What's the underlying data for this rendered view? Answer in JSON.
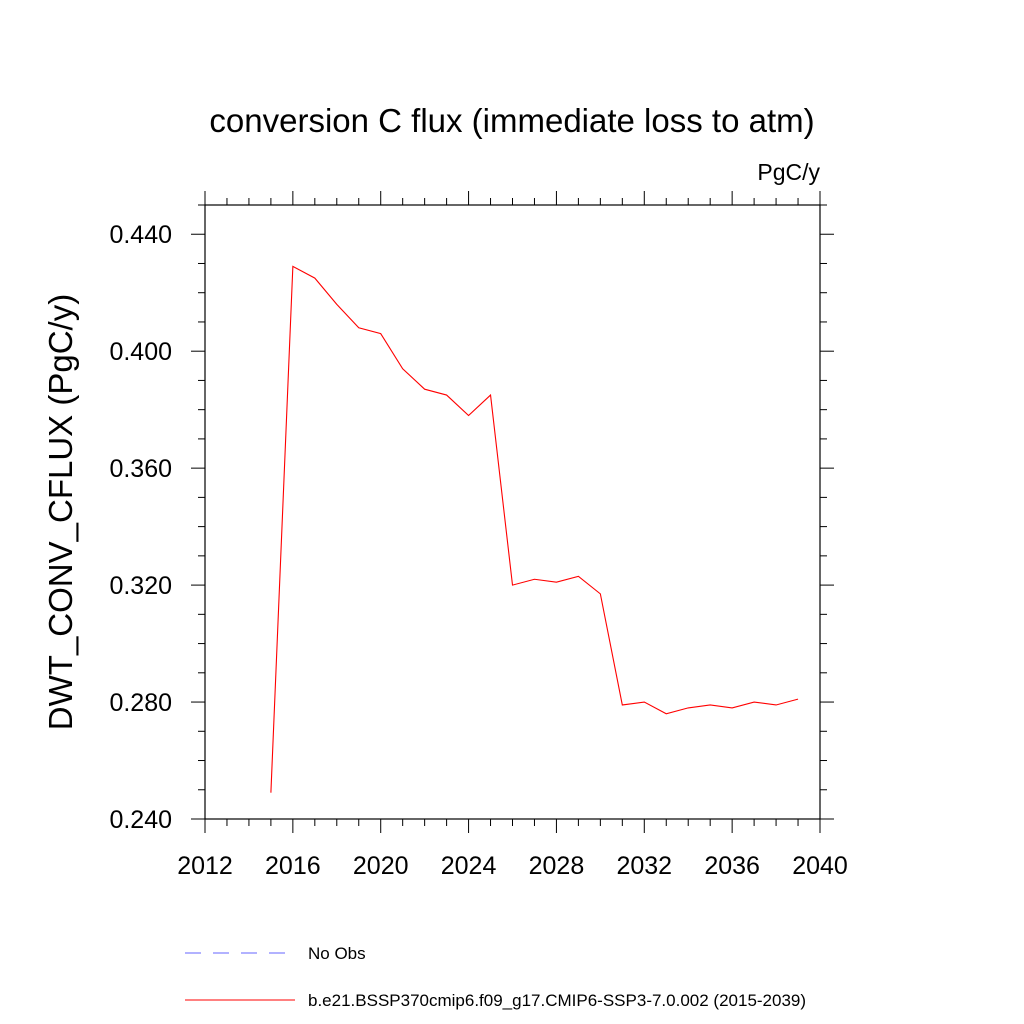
{
  "chart_data": {
    "type": "line",
    "title": "conversion C flux (immediate loss to atm)",
    "units": "PgC/y",
    "ylabel": "DWT_CONV_CFLUX  (PgC/y)",
    "xlabel": "",
    "xlim": [
      2012,
      2040
    ],
    "ylim": [
      0.24,
      0.45
    ],
    "x_ticks": [
      2012,
      2016,
      2020,
      2024,
      2028,
      2032,
      2036,
      2040
    ],
    "x_tick_labels": [
      "2012",
      "2016",
      "2020",
      "2024",
      "2028",
      "2032",
      "2036",
      "2040"
    ],
    "y_ticks": [
      0.24,
      0.28,
      0.32,
      0.36,
      0.4,
      0.44
    ],
    "y_tick_labels": [
      "0.240",
      "0.280",
      "0.320",
      "0.360",
      "0.400",
      "0.440"
    ],
    "grid": false,
    "legend_position": "bottom",
    "series": [
      {
        "name": "No Obs",
        "color": "#0000ff",
        "dashed": true,
        "x": [],
        "values": []
      },
      {
        "name": "b.e21.BSSP370cmip6.f09_g17.CMIP6-SSP3-7.0.002 (2015-2039)",
        "color": "#ff0000",
        "dashed": false,
        "x": [
          2015,
          2016,
          2017,
          2018,
          2019,
          2020,
          2021,
          2022,
          2023,
          2024,
          2025,
          2026,
          2027,
          2028,
          2029,
          2030,
          2031,
          2032,
          2033,
          2034,
          2035,
          2036,
          2037,
          2038,
          2039
        ],
        "values": [
          0.249,
          0.429,
          0.425,
          0.416,
          0.408,
          0.406,
          0.394,
          0.387,
          0.385,
          0.378,
          0.385,
          0.32,
          0.322,
          0.321,
          0.323,
          0.317,
          0.279,
          0.28,
          0.276,
          0.278,
          0.279,
          0.278,
          0.28,
          0.279,
          0.281
        ]
      }
    ]
  }
}
